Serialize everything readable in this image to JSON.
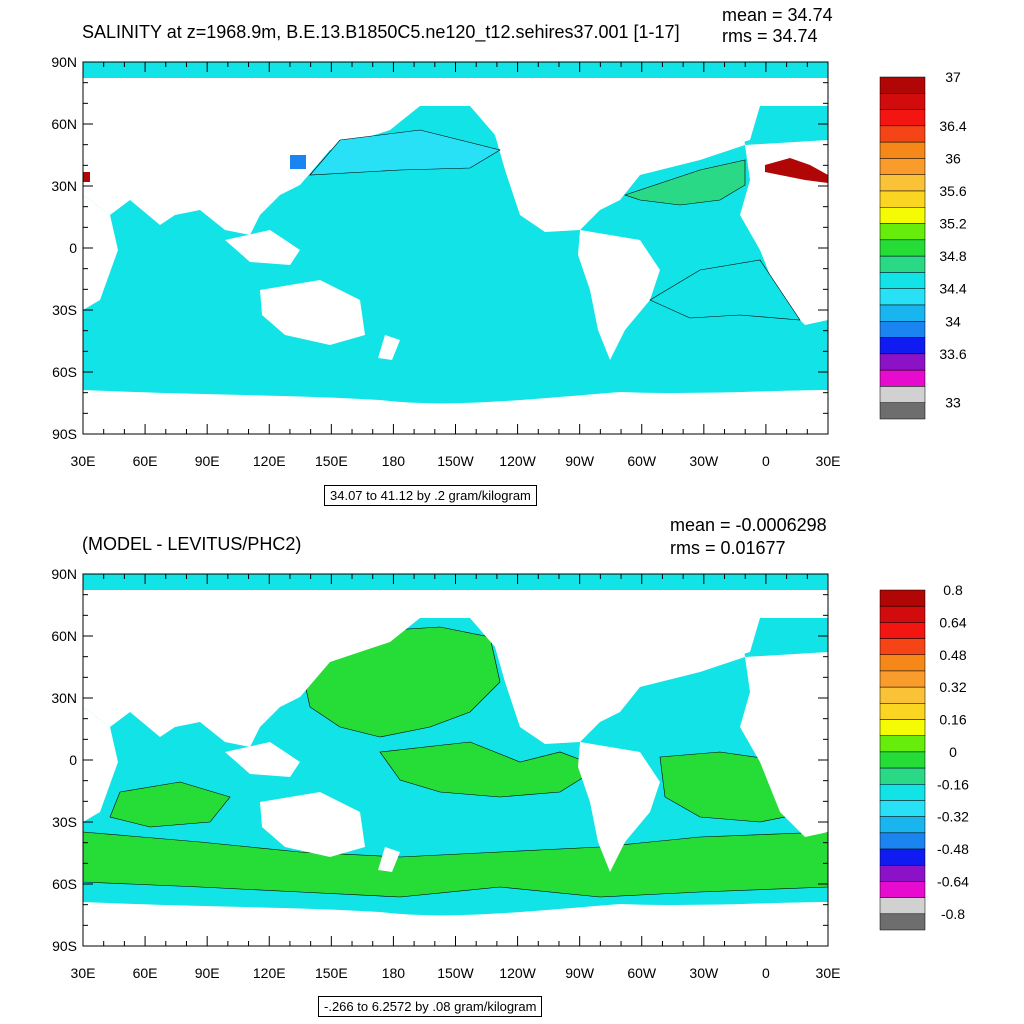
{
  "colors": {
    "land": "#ffffff",
    "frame": "#000000"
  },
  "panels": [
    {
      "id": "top",
      "title": "SALINITY at z=1968.9m, B.E.13.B1850C5.ne120_t12.sehires37.001 [1-17]",
      "mean": "mean = 34.74",
      "rms": "rms = 34.74",
      "unit_label": "34.07 to 41.12 by .2 gram/kilogram",
      "y_ticks": [
        "90N",
        "60N",
        "30N",
        "0",
        "30S",
        "60S",
        "90S"
      ],
      "x_ticks": [
        "30E",
        "60E",
        "90E",
        "120E",
        "150E",
        "180",
        "150W",
        "120W",
        "90W",
        "60W",
        "30W",
        "0",
        "30E"
      ],
      "ocean_color": "#11e3e6",
      "colorbar": {
        "colors": [
          "#6e6e6e",
          "#d1d1d1",
          "#e60bcf",
          "#8c12c8",
          "#0f1bf0",
          "#1a85f0",
          "#18b5ee",
          "#29e1f6",
          "#11e3e6",
          "#2ad985",
          "#26dc37",
          "#66ed0c",
          "#f4fb04",
          "#fad622",
          "#fac237",
          "#fa9c2c",
          "#f6881a",
          "#f54416",
          "#f21511",
          "#d20c0c",
          "#b00606"
        ],
        "labels": [
          {
            "text": "37",
            "at": 0
          },
          {
            "text": "36.4",
            "at": 3
          },
          {
            "text": "36",
            "at": 5
          },
          {
            "text": "35.6",
            "at": 7
          },
          {
            "text": "35.2",
            "at": 9
          },
          {
            "text": "34.8",
            "at": 11
          },
          {
            "text": "34.4",
            "at": 13
          },
          {
            "text": "34",
            "at": 15
          },
          {
            "text": "33.6",
            "at": 17
          },
          {
            "text": "33",
            "at": 20
          }
        ]
      }
    },
    {
      "id": "bottom",
      "title": "(MODEL - LEVITUS/PHC2)",
      "mean": "mean = -0.0006298",
      "rms": "rms = 0.01677",
      "unit_label": "-.266 to 6.2572 by .08 gram/kilogram",
      "y_ticks": [
        "90N",
        "60N",
        "30N",
        "0",
        "30S",
        "60S",
        "90S"
      ],
      "x_ticks": [
        "30E",
        "60E",
        "90E",
        "120E",
        "150E",
        "180",
        "150W",
        "120W",
        "90W",
        "60W",
        "30W",
        "0",
        "30E"
      ],
      "ocean_color": "#11e3e6",
      "colorbar": {
        "colors": [
          "#6e6e6e",
          "#d1d1d1",
          "#e60bcf",
          "#8c12c8",
          "#0f1bf0",
          "#1a85f0",
          "#18b5ee",
          "#29e1f6",
          "#11e3e6",
          "#2ad985",
          "#26dc37",
          "#66ed0c",
          "#f4fb04",
          "#fad622",
          "#fac237",
          "#fa9c2c",
          "#f6881a",
          "#f54416",
          "#f21511",
          "#d20c0c",
          "#b00606"
        ],
        "labels": [
          {
            "text": "0.8",
            "at": 0
          },
          {
            "text": "0.64",
            "at": 2
          },
          {
            "text": "0.48",
            "at": 4
          },
          {
            "text": "0.32",
            "at": 6
          },
          {
            "text": "0.16",
            "at": 8
          },
          {
            "text": "0",
            "at": 10
          },
          {
            "text": "-0.16",
            "at": 12
          },
          {
            "text": "-0.32",
            "at": 14
          },
          {
            "text": "-0.48",
            "at": 16
          },
          {
            "text": "-0.64",
            "at": 18
          },
          {
            "text": "-0.8",
            "at": 20
          }
        ]
      }
    }
  ]
}
